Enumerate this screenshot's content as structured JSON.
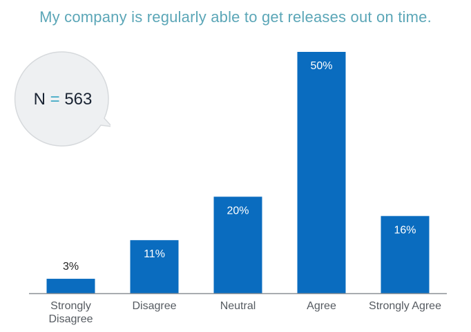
{
  "chart_data": {
    "type": "bar",
    "title": "My company is regularly able to get releases out on time.",
    "annotation": {
      "prefix": "N",
      "equals": "=",
      "value": "563"
    },
    "categories": [
      "Strongly Disagree",
      "Disagree",
      "Neutral",
      "Agree",
      "Strongly Agree"
    ],
    "category_lines": [
      [
        "Strongly",
        "Disagree"
      ],
      [
        "Disagree"
      ],
      [
        "Neutral"
      ],
      [
        "Agree"
      ],
      [
        "Strongly Agree"
      ]
    ],
    "values": [
      3,
      11,
      20,
      50,
      16
    ],
    "value_labels": [
      "3%",
      "11%",
      "20%",
      "50%",
      "16%"
    ],
    "unit": "%",
    "ylim": [
      0,
      50
    ],
    "grid": false,
    "colors": {
      "bar": "#0a6cbf",
      "title": "#5ba6b7",
      "baseline": "#8a8f94",
      "bubble_fill": "#eef0f2",
      "bubble_stroke": "#d6d9dc",
      "equals": "#3fa9c4"
    }
  }
}
